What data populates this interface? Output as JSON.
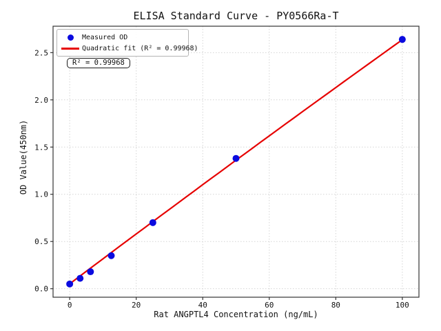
{
  "chart_data": {
    "type": "scatter",
    "title": "ELISA Standard Curve - PY0566Ra-T",
    "xlabel": "Rat ANGPTL4 Concentration (ng/mL)",
    "ylabel": "OD Value(450nm)",
    "xlim": [
      -5,
      105
    ],
    "ylim": [
      -0.09,
      2.78
    ],
    "xticks": [
      0,
      20,
      40,
      60,
      80,
      100
    ],
    "yticks": [
      0.0,
      0.5,
      1.0,
      1.5,
      2.0,
      2.5
    ],
    "xtick_labels": [
      "0",
      "20",
      "40",
      "60",
      "80",
      "100"
    ],
    "ytick_labels": [
      "0.0",
      "0.5",
      "1.0",
      "1.5",
      "2.0",
      "2.5"
    ],
    "grid": true,
    "grid_style": "dotted",
    "series": [
      {
        "name": "Measured OD",
        "type": "scatter",
        "color": "#0b0bdf",
        "x": [
          0,
          3.125,
          6.25,
          12.5,
          25,
          50,
          100
        ],
        "y": [
          0.05,
          0.11,
          0.18,
          0.35,
          0.7,
          1.38,
          2.64
        ]
      },
      {
        "name": "Quadratic fit (R² = 0.99968)",
        "type": "line",
        "color": "#e60000",
        "fit": {
          "kind": "quadratic",
          "a": 0.052,
          "b": 0.0265,
          "c": -6.5e-06,
          "x_range": [
            0,
            100
          ]
        }
      }
    ],
    "legend": {
      "position": "upper left",
      "entries": [
        {
          "marker": "circle",
          "color": "#0b0bdf",
          "label": "Measured OD"
        },
        {
          "marker": "line",
          "color": "#e60000",
          "label": "Quadratic fit (R² = 0.99968)"
        }
      ]
    },
    "annotation": {
      "text": "R² = 0.99968"
    },
    "colors": {
      "spine": "#333333",
      "gridline": "#d4d4d4",
      "text": "#111111"
    }
  }
}
